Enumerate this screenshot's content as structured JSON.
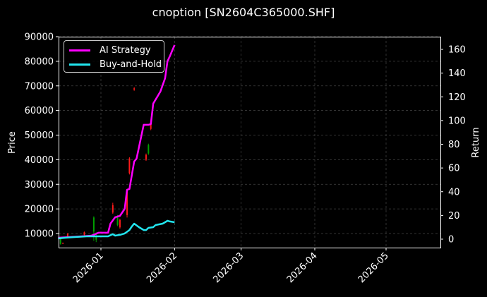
{
  "title": "cnoption [SN2604C365000.SHF]",
  "colors": {
    "background": "#000000",
    "ai_strategy": "#ff00ff",
    "buy_and_hold": "#22e5ee",
    "candle_up": "#00a000",
    "candle_down": "#ff1a1a",
    "grid": "#444444",
    "frame": "#ffffff"
  },
  "legend": {
    "items": [
      {
        "label": "AI Strategy",
        "color": "#ff00ff"
      },
      {
        "label": "Buy-and-Hold",
        "color": "#22e5ee"
      }
    ]
  },
  "axes": {
    "left_label": "Price",
    "right_label": "Return",
    "left_ticks": [
      "90000",
      "80000",
      "70000",
      "60000",
      "50000",
      "40000",
      "30000",
      "20000",
      "10000"
    ],
    "right_ticks": [
      "160",
      "140",
      "120",
      "100",
      "80",
      "60",
      "40",
      "20",
      "0"
    ],
    "x_ticks": [
      "2026-01",
      "2026-02",
      "2026-03",
      "2026-04",
      "2026-05"
    ]
  },
  "chart_data": {
    "type": "line",
    "title": "cnoption [SN2604C365000.SHF]",
    "xlabel": "",
    "ylabel_left": "Price",
    "ylabel_right": "Return",
    "ylim_left": [
      5500,
      90000
    ],
    "ylim_right": [
      -7,
      170
    ],
    "xlim": [
      "2025-12-14",
      "2026-05-14"
    ],
    "grid": true,
    "legend_position": "upper left",
    "x_ticks": [
      "2026-01",
      "2026-02",
      "2026-03",
      "2026-04",
      "2026-05"
    ],
    "series": [
      {
        "name": "AI Strategy",
        "axis": "right",
        "x": [
          "2025-12-14",
          "2025-12-19",
          "2025-12-24",
          "2025-12-28",
          "2025-12-29",
          "2025-12-31",
          "2026-01-04",
          "2026-01-05",
          "2026-01-07",
          "2026-01-09",
          "2026-01-11",
          "2026-01-12",
          "2026-01-13",
          "2026-01-15",
          "2026-01-16",
          "2026-01-19",
          "2026-01-21",
          "2026-01-22",
          "2026-01-23",
          "2026-01-26",
          "2026-01-28",
          "2026-01-29",
          "2026-01-30",
          "2026-02-01"
        ],
        "values": [
          1.2,
          1.8,
          2.4,
          3.0,
          3.6,
          5.4,
          5.4,
          13.1,
          18.5,
          19.6,
          25.6,
          41.7,
          42.3,
          65.5,
          67.9,
          96.4,
          96.4,
          97.0,
          114.3,
          124.4,
          135.7,
          150.0,
          154.2,
          163.7
        ]
      },
      {
        "name": "Buy-and-Hold",
        "axis": "right",
        "x": [
          "2025-12-14",
          "2025-12-17",
          "2025-12-21",
          "2025-12-26",
          "2025-12-30",
          "2026-01-04",
          "2026-01-06",
          "2026-01-07",
          "2026-01-09",
          "2026-01-11",
          "2026-01-13",
          "2026-01-14",
          "2026-01-15",
          "2026-01-17",
          "2026-01-19",
          "2026-01-20",
          "2026-01-21",
          "2026-01-23",
          "2026-01-24",
          "2026-01-27",
          "2026-01-28",
          "2026-01-29",
          "2026-01-30",
          "2026-02-01"
        ],
        "values": [
          0.6,
          1.2,
          1.8,
          2.4,
          2.4,
          2.4,
          4.2,
          3.0,
          3.6,
          4.8,
          7.7,
          10.7,
          13.1,
          10.1,
          7.7,
          7.7,
          9.5,
          10.1,
          11.9,
          13.1,
          14.3,
          15.5,
          14.9,
          14.3
        ]
      }
    ],
    "candles": {
      "axis": "left",
      "items": [
        {
          "date": "2025-12-15",
          "open": 8000,
          "close": 5800,
          "high": 8300,
          "low": 5500,
          "dir": "up"
        },
        {
          "date": "2025-12-16",
          "open": 6200,
          "close": 5900,
          "high": 6300,
          "low": 5700,
          "dir": "down"
        },
        {
          "date": "2025-12-18",
          "open": 9900,
          "close": 8600,
          "high": 10200,
          "low": 8300,
          "dir": "down"
        },
        {
          "date": "2025-12-25",
          "open": 10500,
          "close": 9500,
          "high": 10800,
          "low": 9300,
          "dir": "down"
        },
        {
          "date": "2025-12-29",
          "open": 16500,
          "close": 10800,
          "high": 17000,
          "low": 7000,
          "dir": "up"
        },
        {
          "date": "2025-12-30",
          "open": 9000,
          "close": 7500,
          "high": 10500,
          "low": 6500,
          "dir": "up"
        },
        {
          "date": "2026-01-06",
          "open": 21500,
          "close": 18500,
          "high": 22500,
          "low": 18000,
          "dir": "down"
        },
        {
          "date": "2026-01-08",
          "open": 16500,
          "close": 13500,
          "high": 17500,
          "low": 13000,
          "dir": "up"
        },
        {
          "date": "2026-01-09",
          "open": 15500,
          "close": 12500,
          "high": 16000,
          "low": 12000,
          "dir": "down"
        },
        {
          "date": "2026-01-12",
          "open": 27000,
          "close": 17500,
          "high": 28000,
          "low": 16500,
          "dir": "down"
        },
        {
          "date": "2026-01-13",
          "open": 40500,
          "close": 34500,
          "high": 41000,
          "low": 34000,
          "dir": "down"
        },
        {
          "date": "2026-01-15",
          "open": 69000,
          "close": 68500,
          "high": 69500,
          "low": 68000,
          "dir": "down"
        },
        {
          "date": "2026-01-20",
          "open": 42000,
          "close": 40000,
          "high": 42500,
          "low": 39500,
          "dir": "down"
        },
        {
          "date": "2026-01-21",
          "open": 46000,
          "close": 42500,
          "high": 46500,
          "low": 42000,
          "dir": "up"
        },
        {
          "date": "2026-01-22",
          "open": 55000,
          "close": 52500,
          "high": 55500,
          "low": 52000,
          "dir": "down"
        }
      ]
    }
  }
}
